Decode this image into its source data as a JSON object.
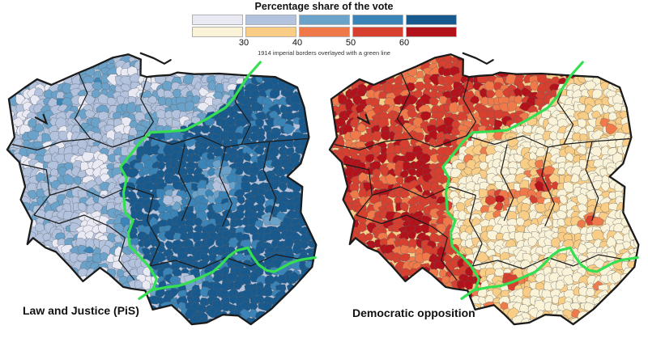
{
  "legend": {
    "title": "Percentage share of the vote",
    "note": "1914 imperial borders overlayed with a green line",
    "tick_labels": [
      "30",
      "40",
      "50",
      "60"
    ],
    "class_breaks": [
      30,
      40,
      50,
      60
    ],
    "palettes": {
      "pis": [
        "#e9eaf4",
        "#b3c3de",
        "#6aa2c9",
        "#3a84b8",
        "#185a8e"
      ],
      "opposition": [
        "#faf3d8",
        "#f9cd85",
        "#f0794a",
        "#d73f2f",
        "#b3121a"
      ]
    }
  },
  "panels": [
    {
      "id": "pis",
      "label": "Law and Justice (PiS)",
      "palette": "pis",
      "value_key": "vp"
    },
    {
      "id": "opposition",
      "label": "Democratic opposition",
      "palette": "opposition",
      "value_key": "vo"
    }
  ],
  "map": {
    "green_border_color": "#35df52",
    "border_color": "#1b1b1b",
    "cell_stroke": "#5a5f66",
    "outline": [
      [
        1,
        17
      ],
      [
        6,
        13
      ],
      [
        10,
        10
      ],
      [
        14.5,
        12
      ],
      [
        22.6,
        8
      ],
      [
        28,
        5.5
      ],
      [
        34,
        2.4
      ],
      [
        39,
        1.2
      ],
      [
        43,
        3
      ],
      [
        42.9,
        8.5
      ],
      [
        44.9,
        9.2
      ],
      [
        48,
        8.8
      ],
      [
        52.3,
        8.5
      ],
      [
        54.7,
        7.6
      ],
      [
        60,
        8.2
      ],
      [
        68,
        8.0
      ],
      [
        76,
        8.6
      ],
      [
        85.8,
        9.2
      ],
      [
        92.8,
        12.9
      ],
      [
        95,
        20
      ],
      [
        96.5,
        30.5
      ],
      [
        93.9,
        39.8
      ],
      [
        89.6,
        44.4
      ],
      [
        94.4,
        48
      ],
      [
        93.9,
        57.1
      ],
      [
        98.8,
        68.5
      ],
      [
        97.5,
        76.3
      ],
      [
        92,
        83
      ],
      [
        84.5,
        91.2
      ],
      [
        78,
        96.6
      ],
      [
        74,
        93.5
      ],
      [
        69.1,
        93.2
      ],
      [
        64,
        96
      ],
      [
        59.2,
        96.6
      ],
      [
        56.2,
        93.2
      ],
      [
        52.8,
        89.8
      ],
      [
        46.8,
        91.4
      ],
      [
        44.4,
        84.7
      ],
      [
        40,
        84
      ],
      [
        37.4,
        83.4
      ],
      [
        33,
        79
      ],
      [
        30,
        76.6
      ],
      [
        24.6,
        81.4
      ],
      [
        20.6,
        76.3
      ],
      [
        16,
        71
      ],
      [
        12.7,
        69.5
      ],
      [
        8.7,
        66.1
      ],
      [
        6.9,
        68.3
      ],
      [
        8.4,
        60
      ],
      [
        4.8,
        52.5
      ],
      [
        6.2,
        48
      ],
      [
        4.3,
        39.3
      ],
      [
        0.5,
        34.9
      ],
      [
        2.8,
        30.5
      ],
      [
        1.8,
        22.9
      ]
    ],
    "green_border": {
      "north_south": [
        [
          81,
          4
        ],
        [
          77,
          9
        ],
        [
          73,
          16
        ],
        [
          70,
          20
        ],
        [
          64,
          24
        ],
        [
          57,
          28
        ],
        [
          51,
          28.5
        ],
        [
          46,
          28.8
        ],
        [
          43,
          32
        ],
        [
          38,
          39
        ],
        [
          36.5,
          41
        ],
        [
          38.5,
          45
        ],
        [
          37.5,
          50
        ],
        [
          38,
          57
        ],
        [
          40.5,
          60
        ],
        [
          39,
          64.5
        ],
        [
          39.5,
          69
        ],
        [
          43,
          73
        ],
        [
          45.5,
          76
        ],
        [
          48,
          80.5
        ],
        [
          47,
          84
        ],
        [
          44.5,
          86
        ],
        [
          42.5,
          87.5
        ]
      ],
      "east": [
        [
          46.5,
          84.5
        ],
        [
          51,
          83.5
        ],
        [
          55,
          83
        ],
        [
          59,
          81.5
        ],
        [
          63,
          79.5
        ],
        [
          66,
          78
        ],
        [
          68.5,
          75.5
        ],
        [
          71,
          72.5
        ],
        [
          73.5,
          70.5
        ],
        [
          75.5,
          70
        ],
        [
          77,
          69.5
        ],
        [
          78.5,
          72.5
        ],
        [
          80.5,
          75.5
        ],
        [
          83,
          77.5
        ],
        [
          85.5,
          78
        ],
        [
          88,
          76.5
        ],
        [
          90.5,
          75
        ],
        [
          93,
          74
        ],
        [
          95.5,
          73.5
        ],
        [
          98.5,
          73
        ]
      ]
    },
    "partition_boundary": [
      [
        0,
        81
      ],
      [
        4,
        81
      ],
      [
        10,
        76
      ],
      [
        20,
        70
      ],
      [
        24,
        64
      ],
      [
        28,
        56
      ],
      [
        30,
        47
      ],
      [
        33,
        43
      ],
      [
        41,
        36
      ],
      [
        45,
        38
      ],
      [
        50,
        37.5
      ],
      [
        57,
        38
      ],
      [
        60,
        41
      ],
      [
        65,
        39
      ],
      [
        69,
        39.5
      ],
      [
        73,
        43
      ],
      [
        76,
        46
      ],
      [
        81,
        48
      ],
      [
        84,
        47
      ],
      [
        88,
        44
      ],
      [
        100,
        44
      ]
    ],
    "internal_borders": [
      [
        [
          23,
          7
        ],
        [
          26,
          15
        ],
        [
          22,
          24
        ],
        [
          27,
          31
        ]
      ],
      [
        [
          45,
          9
        ],
        [
          43,
          17
        ],
        [
          47,
          25
        ],
        [
          44,
          30
        ]
      ],
      [
        [
          76,
          10
        ],
        [
          73,
          18
        ],
        [
          78,
          26
        ],
        [
          75,
          33
        ]
      ],
      [
        [
          2,
          33
        ],
        [
          10,
          35
        ],
        [
          18,
          32
        ],
        [
          27,
          31
        ],
        [
          34,
          34
        ],
        [
          44,
          30
        ],
        [
          53,
          33
        ],
        [
          62,
          30
        ],
        [
          70,
          34
        ],
        [
          75,
          33
        ],
        [
          84,
          32
        ],
        [
          96,
          31
        ]
      ],
      [
        [
          5,
          40
        ],
        [
          13,
          42
        ],
        [
          14,
          51
        ],
        [
          9,
          58
        ]
      ],
      [
        [
          14,
          51
        ],
        [
          23,
          48
        ],
        [
          31,
          52
        ],
        [
          39,
          48
        ],
        [
          47,
          51
        ]
      ],
      [
        [
          47,
          51
        ],
        [
          45,
          60
        ],
        [
          49,
          68
        ],
        [
          46,
          76
        ]
      ],
      [
        [
          9,
          58
        ],
        [
          17,
          61
        ],
        [
          25,
          58
        ],
        [
          33,
          62
        ],
        [
          38,
          66
        ]
      ],
      [
        [
          38,
          66
        ],
        [
          36,
          74
        ],
        [
          41,
          81
        ]
      ],
      [
        [
          46,
          76
        ],
        [
          54,
          74
        ],
        [
          62,
          77
        ],
        [
          70,
          73
        ],
        [
          78,
          76
        ],
        [
          86,
          72
        ],
        [
          96,
          74
        ]
      ],
      [
        [
          57,
          33
        ],
        [
          55,
          43
        ],
        [
          59,
          52
        ],
        [
          56,
          60
        ]
      ],
      [
        [
          70,
          34
        ],
        [
          68,
          44
        ],
        [
          72,
          54
        ],
        [
          69,
          62
        ]
      ],
      [
        [
          84,
          32
        ],
        [
          82,
          42
        ],
        [
          86,
          52
        ],
        [
          84,
          60
        ]
      ]
    ],
    "coast_spits": [
      [
        [
          43,
          0.8
        ],
        [
          47,
          2.5
        ],
        [
          50.5,
          4.5
        ],
        [
          52.5,
          3.2
        ]
      ],
      [
        [
          9.5,
          23.5
        ],
        [
          13,
          25.5
        ],
        [
          12,
          22.5
        ]
      ]
    ],
    "city_pockets": [
      [
        68,
        48,
        6.5,
        30
      ],
      [
        53,
        52,
        4.5,
        26
      ],
      [
        58,
        81,
        3.8,
        24
      ],
      [
        28,
        41,
        5,
        26
      ],
      [
        29,
        63,
        4,
        26
      ],
      [
        45,
        10,
        3.5,
        24
      ],
      [
        47,
        83,
        4.5,
        18
      ],
      [
        4.5,
        26,
        3,
        22
      ],
      [
        36,
        28,
        3,
        14
      ],
      [
        84,
        59,
        2.5,
        16
      ],
      [
        87,
        27,
        2.5,
        14
      ]
    ]
  }
}
